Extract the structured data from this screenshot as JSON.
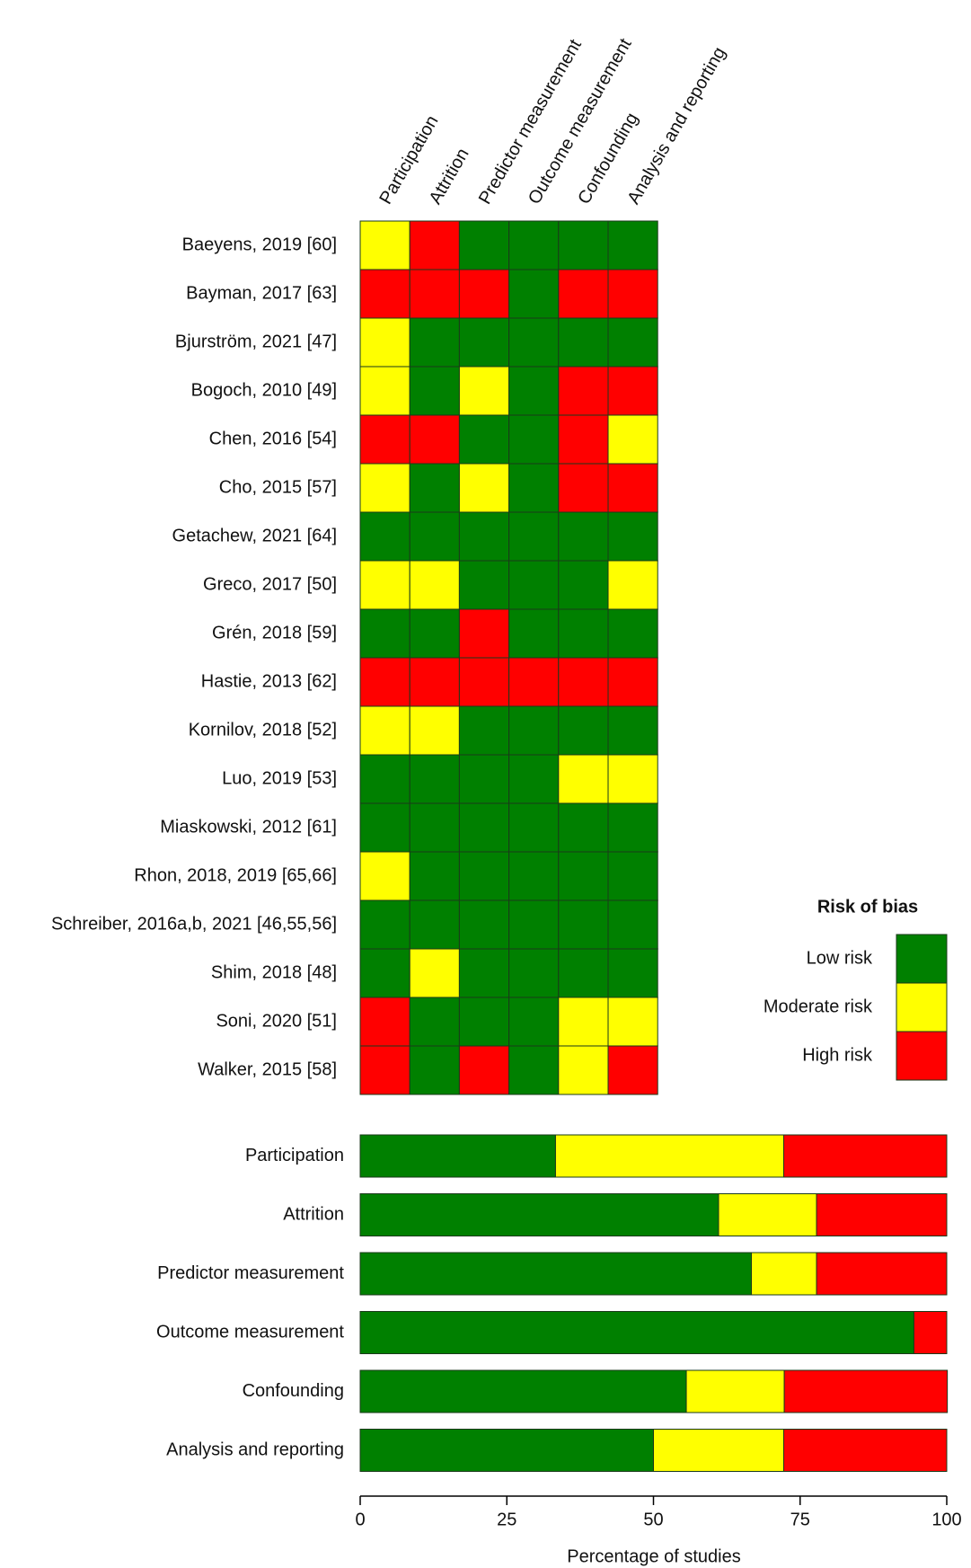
{
  "chart_data": [
    {
      "type": "heatmap",
      "columns": [
        "Participation",
        "Attrition",
        "Predictor measurement",
        "Outcome measurement",
        "Confounding",
        "Analysis and reporting"
      ],
      "rows": [
        "Baeyens, 2019 [60]",
        "Bayman, 2017 [63]",
        "Bjurström, 2021 [47]",
        "Bogoch, 2010 [49]",
        "Chen, 2016 [54]",
        "Cho, 2015 [57]",
        "Getachew, 2021 [64]",
        "Greco, 2017 [50]",
        "Grén, 2018 [59]",
        "Hastie, 2013 [62]",
        "Kornilov, 2018 [52]",
        "Luo, 2019 [53]",
        "Miaskowski, 2012 [61]",
        "Rhon, 2018, 2019 [65,66]",
        "Schreiber, 2016a,b, 2021 [46,55,56]",
        "Shim, 2018 [48]",
        "Soni, 2020 [51]",
        "Walker, 2015 [58]"
      ],
      "values": [
        [
          1,
          2,
          0,
          0,
          0,
          0
        ],
        [
          2,
          2,
          2,
          0,
          2,
          2
        ],
        [
          1,
          0,
          0,
          0,
          0,
          0
        ],
        [
          1,
          0,
          1,
          0,
          2,
          2
        ],
        [
          2,
          2,
          0,
          0,
          2,
          1
        ],
        [
          1,
          0,
          1,
          0,
          2,
          2
        ],
        [
          0,
          0,
          0,
          0,
          0,
          0
        ],
        [
          1,
          1,
          0,
          0,
          0,
          1
        ],
        [
          0,
          0,
          2,
          0,
          0,
          0
        ],
        [
          2,
          2,
          2,
          2,
          2,
          2
        ],
        [
          1,
          1,
          0,
          0,
          0,
          0
        ],
        [
          0,
          0,
          0,
          0,
          1,
          1
        ],
        [
          0,
          0,
          0,
          0,
          0,
          0
        ],
        [
          1,
          0,
          0,
          0,
          0,
          0
        ],
        [
          0,
          0,
          0,
          0,
          0,
          0
        ],
        [
          0,
          1,
          0,
          0,
          0,
          0
        ],
        [
          2,
          0,
          0,
          0,
          1,
          1
        ],
        [
          2,
          0,
          2,
          0,
          1,
          2
        ]
      ],
      "legend_title": "Risk of bias",
      "levels": [
        {
          "name": "Low risk",
          "color": "#008000"
        },
        {
          "name": "Moderate risk",
          "color": "#ffff00"
        },
        {
          "name": "High risk",
          "color": "#ff0000"
        }
      ]
    },
    {
      "type": "stacked-bar",
      "categories": [
        "Participation",
        "Attrition",
        "Predictor measurement",
        "Outcome measurement",
        "Confounding",
        "Analysis and reporting"
      ],
      "series": [
        {
          "color": "#008000",
          "values": [
            33.3,
            61.1,
            66.7,
            94.4,
            55.6,
            50.0
          ]
        },
        {
          "color": "#ffff00",
          "values": [
            38.9,
            16.7,
            11.1,
            0,
            16.7,
            22.2
          ]
        },
        {
          "color": "#ff0000",
          "values": [
            27.8,
            22.2,
            22.2,
            5.6,
            27.8,
            27.8
          ]
        }
      ],
      "xlim": [
        0,
        100
      ],
      "xticks": [
        0,
        25,
        50,
        75,
        100
      ],
      "xlabel": "Percentage of studies"
    }
  ]
}
